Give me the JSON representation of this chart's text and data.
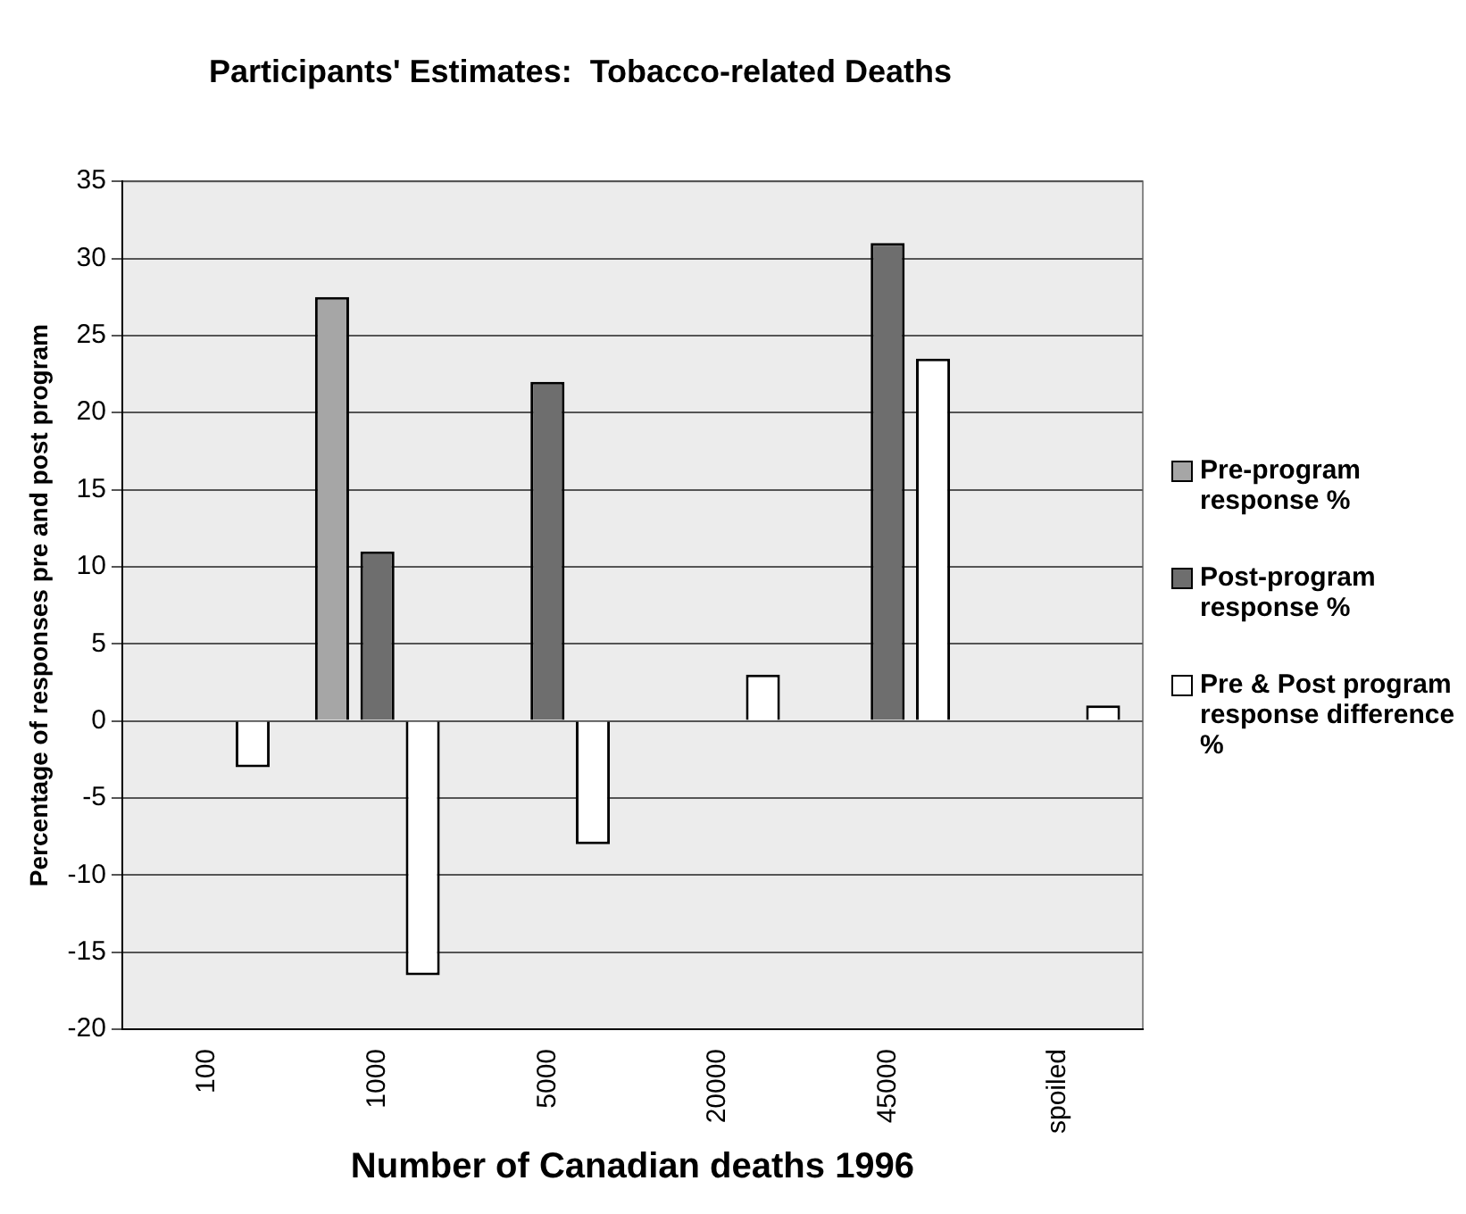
{
  "chart_data": {
    "type": "bar",
    "title": "Participants' Estimates:  Tobacco-related Deaths",
    "xlabel": "Number of Canadian deaths 1996",
    "ylabel": "Percentage of responses pre and post program",
    "categories": [
      "100",
      "1000",
      "5000",
      "20000",
      "45000",
      "spoiled"
    ],
    "series": [
      {
        "name": "Pre-program response %",
        "color": "#a6a6a6",
        "values": [
          0,
          27.5,
          0,
          0,
          0,
          0
        ]
      },
      {
        "name": "Post-program response %",
        "color": "#6e6e6e",
        "values": [
          0,
          11,
          22,
          0,
          31,
          0
        ]
      },
      {
        "name": "Pre & Post program response difference %",
        "color": "#ffffff",
        "values": [
          -3,
          -16.5,
          -8,
          3,
          23.5,
          1
        ]
      }
    ],
    "ylim": [
      -20,
      35
    ],
    "yticks": [
      -20,
      -15,
      -10,
      -5,
      0,
      5,
      10,
      15,
      20,
      25,
      30,
      35
    ],
    "grid": "y",
    "legend": "right"
  }
}
